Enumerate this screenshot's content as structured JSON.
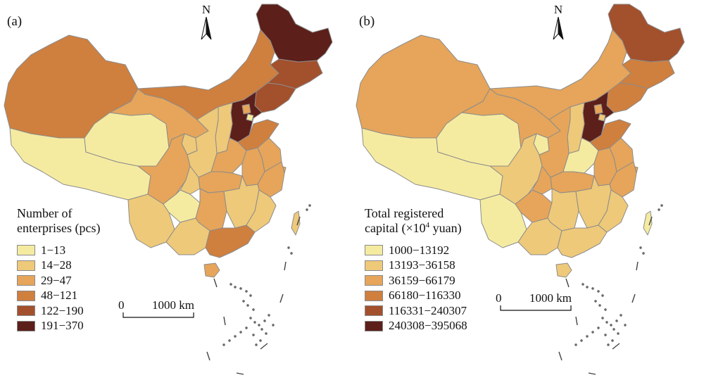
{
  "panels": [
    {
      "id": "a",
      "label": "(a)",
      "north_label": "N",
      "legend_title_line1": "Number of",
      "legend_title_line2": "enterprises (pcs)",
      "legend": [
        {
          "label": "1−13",
          "color": "#f5eba0"
        },
        {
          "label": "14−28",
          "color": "#eec979"
        },
        {
          "label": "29−47",
          "color": "#e6a55a"
        },
        {
          "label": "48−121",
          "color": "#cf7f3e"
        },
        {
          "label": "122−190",
          "color": "#a3502c"
        },
        {
          "label": "191−370",
          "color": "#5c1f1a"
        }
      ],
      "scale_zero": "0",
      "scale_distance": "1000 km"
    },
    {
      "id": "b",
      "label": "(b)",
      "north_label": "N",
      "legend_title_line1": "Total registered",
      "legend_title_prefix": "capital (×10",
      "legend_title_sup": "4",
      "legend_title_suffix": " yuan)",
      "legend": [
        {
          "label": "1000−13192",
          "color": "#f5eba0"
        },
        {
          "label": "13193−36158",
          "color": "#eec979"
        },
        {
          "label": "36159−66179",
          "color": "#e6a55a"
        },
        {
          "label": "66180−116330",
          "color": "#cf7f3e"
        },
        {
          "label": "116331−240307",
          "color": "#a3502c"
        },
        {
          "label": "240308−395068",
          "color": "#5c1f1a"
        }
      ],
      "scale_zero": "0",
      "scale_distance": "1000 km"
    }
  ],
  "map_regions": {
    "a": {
      "xinjiang": 3,
      "tibet": 0,
      "qinghai": 0,
      "gansu": 2,
      "inner_mongolia": 3,
      "heilongjiang": 5,
      "jilin": 4,
      "liaoning": 4,
      "hebei": 5,
      "beijing": 2,
      "tianjin": 0,
      "shanxi": 1,
      "shaanxi": 1,
      "ningxia": 1,
      "shandong": 3,
      "henan": 2,
      "sichuan": 2,
      "chongqing": 1,
      "yunnan": 1,
      "guizhou": 0,
      "guangxi": 1,
      "hubei": 2,
      "hunan": 2,
      "anhui": 2,
      "jiangsu": 2,
      "shanghai": 2,
      "zhejiang": 2,
      "jiangxi": 1,
      "fujian": 1,
      "guangdong": 3,
      "hainan": 2,
      "taiwan": 1
    },
    "b": {
      "xinjiang": 2,
      "tibet": 0,
      "qinghai": 0,
      "gansu": 2,
      "inner_mongolia": 2,
      "heilongjiang": 4,
      "jilin": 3,
      "liaoning": 3,
      "hebei": 5,
      "beijing": 2,
      "tianjin": 1,
      "shanxi": 1,
      "shaanxi": 2,
      "ningxia": 0,
      "shandong": 3,
      "henan": 0,
      "sichuan": 1,
      "chongqing": 2,
      "yunnan": 0,
      "guizhou": 2,
      "guangxi": 1,
      "hubei": 2,
      "hunan": 1,
      "anhui": 2,
      "jiangsu": 2,
      "shanghai": 2,
      "zhejiang": 2,
      "jiangxi": 1,
      "fujian": 1,
      "guangdong": 1,
      "hainan": 1,
      "taiwan": 0
    }
  }
}
